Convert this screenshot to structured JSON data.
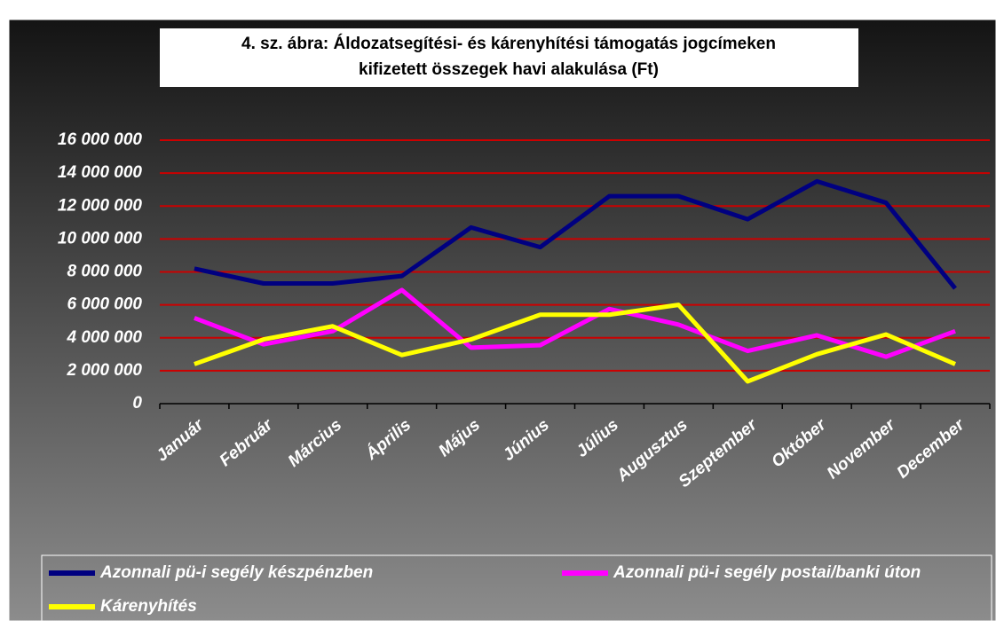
{
  "chart_data": {
    "type": "line",
    "title": "4. sz. ábra: Áldozatsegítési- és kárenyhítési támogatás jogcímeken",
    "subtitle": "kifizetett összegek havi alakulása (Ft)",
    "categories": [
      "Január",
      "Február",
      "Március",
      "Április",
      "Május",
      "Június",
      "Július",
      "Augusztus",
      "Szeptember",
      "Október",
      "November",
      "December"
    ],
    "series": [
      {
        "name": "Azonnali pü-i segély készpénzben",
        "color": "#000080",
        "values": [
          8200000,
          7300000,
          7300000,
          7750000,
          10700000,
          9500000,
          12600000,
          12600000,
          11200000,
          13500000,
          12200000,
          7000000
        ]
      },
      {
        "name": "Azonnali pü-i segély postai/banki úton",
        "color": "#ff00ff",
        "values": [
          5200000,
          3600000,
          4400000,
          6900000,
          3400000,
          3550000,
          5750000,
          4800000,
          3200000,
          4150000,
          2850000,
          4400000
        ]
      },
      {
        "name": "Kárenyhítés",
        "color": "#ffff00",
        "values": [
          2400000,
          3900000,
          4700000,
          2950000,
          3900000,
          5400000,
          5400000,
          6000000,
          1350000,
          3000000,
          4200000,
          2400000
        ]
      }
    ],
    "ylim": [
      0,
      16000000
    ],
    "yticks": [
      {
        "value": 0,
        "label": "0"
      },
      {
        "value": 2000000,
        "label": "2 000 000"
      },
      {
        "value": 4000000,
        "label": "4 000 000"
      },
      {
        "value": 6000000,
        "label": "6 000 000"
      },
      {
        "value": 8000000,
        "label": "8 000 000"
      },
      {
        "value": 10000000,
        "label": "10 000 000"
      },
      {
        "value": 12000000,
        "label": "12 000 000"
      },
      {
        "value": 14000000,
        "label": "14 000 000"
      },
      {
        "value": 16000000,
        "label": "16 000 000"
      }
    ],
    "grid": true,
    "grid_color": "#cc0000",
    "legend": "bottom"
  }
}
